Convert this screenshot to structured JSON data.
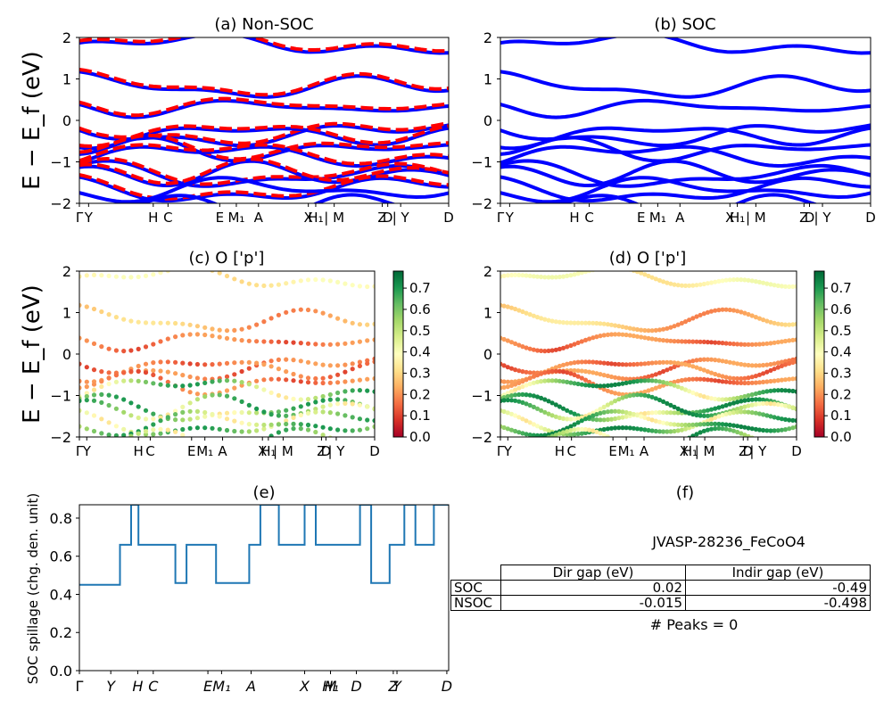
{
  "panels": {
    "a": {
      "title": "(a) Non-SOC"
    },
    "b": {
      "title": "(b) SOC"
    },
    "c": {
      "title": "(c)  O ['p']"
    },
    "d": {
      "title": "(d) O ['p']"
    },
    "e": {
      "title": "(e)"
    },
    "f": {
      "title": "(f)"
    }
  },
  "axes": {
    "band_ylabel": "E − E_f (eV)",
    "band_yticks": [
      "2",
      "1",
      "0",
      "−1",
      "−2"
    ],
    "kpath_labels": [
      "Γ",
      "Y",
      "H",
      "C",
      "E",
      "M1",
      "A",
      "X",
      "H1",
      "| M",
      "Z",
      "D",
      "| Y",
      "D"
    ],
    "spillage_ylabel": "SOC spillage (chg. den. unit)",
    "spillage_yticks": [
      "0.0",
      "0.2",
      "0.4",
      "0.6",
      "0.8"
    ],
    "spillage_xticks": [
      "Γ",
      "Y",
      "H",
      "C",
      "E",
      "M1",
      "A",
      "X",
      "H1",
      "M",
      "D",
      "Z",
      "Y",
      "D"
    ]
  },
  "colorbar": {
    "ticks": [
      "0.0",
      "0.1",
      "0.2",
      "0.3",
      "0.4",
      "0.5",
      "0.6",
      "0.7"
    ],
    "colormap": "RdYlGn",
    "range": [
      0,
      0.78
    ]
  },
  "colors": {
    "soc": "#0000ff",
    "nonsoc": "#ff0000",
    "spillage": "#1f77b4"
  },
  "info": {
    "material": "JVASP-28236_FeCoO4",
    "table": {
      "headers": [
        "Dir gap (eV)",
        "Indir gap (eV)"
      ],
      "rows": [
        {
          "label": "SOC",
          "dir": "0.02",
          "indir": "-0.49"
        },
        {
          "label": "NSOC",
          "dir": "-0.015",
          "indir": "-0.498"
        }
      ]
    },
    "peaks": "# Peaks = 0"
  },
  "chart_data": {
    "type": "line",
    "title": "(e)",
    "ylabel": "SOC spillage (chg. den. unit)",
    "ylim": [
      0,
      0.87
    ],
    "x": [
      0,
      0.11,
      0.11,
      0.14,
      0.14,
      0.16,
      0.16,
      0.26,
      0.26,
      0.29,
      0.29,
      0.37,
      0.37,
      0.46,
      0.46,
      0.49,
      0.49,
      0.54,
      0.54,
      0.61,
      0.61,
      0.64,
      0.64,
      0.76,
      0.76,
      0.79,
      0.79,
      0.84,
      0.84,
      0.88,
      0.88,
      0.91,
      0.91,
      0.96,
      0.96,
      1.0
    ],
    "values": [
      0.45,
      0.45,
      0.66,
      0.66,
      0.87,
      0.87,
      0.66,
      0.66,
      0.46,
      0.46,
      0.66,
      0.66,
      0.46,
      0.46,
      0.66,
      0.66,
      0.87,
      0.87,
      0.66,
      0.66,
      0.87,
      0.87,
      0.66,
      0.66,
      0.87,
      0.87,
      0.46,
      0.46,
      0.66,
      0.66,
      0.87,
      0.87,
      0.66,
      0.66,
      0.87,
      0.87
    ]
  }
}
